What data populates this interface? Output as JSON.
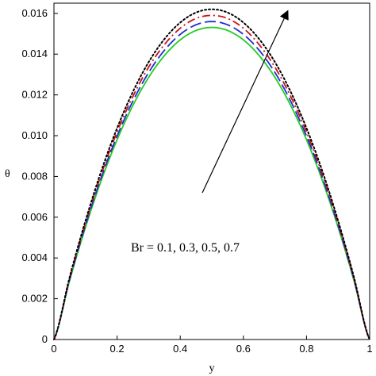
{
  "chart_data": {
    "type": "line",
    "title": "",
    "xlabel": "y",
    "ylabel": "θ",
    "xlim": [
      0,
      1
    ],
    "ylim": [
      0,
      0.0165
    ],
    "x_ticks": [
      "0",
      "0.2",
      "0.4",
      "0.6",
      "0.8",
      "1"
    ],
    "x_tick_values": [
      0,
      0.2,
      0.4,
      0.6,
      0.8,
      1
    ],
    "y_ticks": [
      "0",
      "0.002",
      "0.004",
      "0.006",
      "0.008",
      "0.010",
      "0.012",
      "0.014",
      "0.016"
    ],
    "y_tick_values": [
      0,
      0.002,
      0.004,
      0.006,
      0.008,
      0.01,
      0.012,
      0.014,
      0.016
    ],
    "grid": false,
    "legend": "none",
    "annotation": "Br = 0.1, 0.3, 0.5, 0.7",
    "arrow": {
      "from": [
        0.47,
        0.0072
      ],
      "to": [
        0.74,
        0.0161
      ]
    },
    "x": [
      0,
      0.05,
      0.1,
      0.15,
      0.2,
      0.25,
      0.3,
      0.35,
      0.4,
      0.45,
      0.5,
      0.55,
      0.6,
      0.65,
      0.7,
      0.75,
      0.8,
      0.85,
      0.9,
      0.95,
      1
    ],
    "series": [
      {
        "color": "#22cc22",
        "dash": "solid",
        "values": [
          0,
          0.00291,
          0.00551,
          0.00781,
          0.0098,
          0.01148,
          0.01286,
          0.01393,
          0.0147,
          0.01516,
          0.01531,
          0.01516,
          0.0147,
          0.01393,
          0.01286,
          0.01148,
          0.0098,
          0.00781,
          0.00551,
          0.00291,
          0
        ]
      },
      {
        "color": "#1f2bd6",
        "dash": "longdash",
        "values": [
          0,
          0.00296,
          0.00561,
          0.00796,
          0.00998,
          0.01169,
          0.0131,
          0.01419,
          0.01497,
          0.01544,
          0.0156,
          0.01544,
          0.01497,
          0.01419,
          0.0131,
          0.01169,
          0.00998,
          0.00796,
          0.00561,
          0.00296,
          0
        ]
      },
      {
        "color": "#cc1111",
        "dash": "dashdot",
        "values": [
          0,
          0.00302,
          0.00572,
          0.00811,
          0.01018,
          0.01192,
          0.01336,
          0.01447,
          0.01527,
          0.01575,
          0.0159,
          0.01575,
          0.01527,
          0.01447,
          0.01336,
          0.01192,
          0.01018,
          0.00811,
          0.00572,
          0.00302,
          0
        ]
      },
      {
        "color": "#000000",
        "dash": "dotted",
        "values": [
          0,
          0.00308,
          0.00583,
          0.00827,
          0.01037,
          0.01215,
          0.01361,
          0.01474,
          0.01555,
          0.01604,
          0.0162,
          0.01604,
          0.01555,
          0.01474,
          0.01361,
          0.01215,
          0.01037,
          0.00827,
          0.00583,
          0.00308,
          0
        ]
      }
    ]
  }
}
